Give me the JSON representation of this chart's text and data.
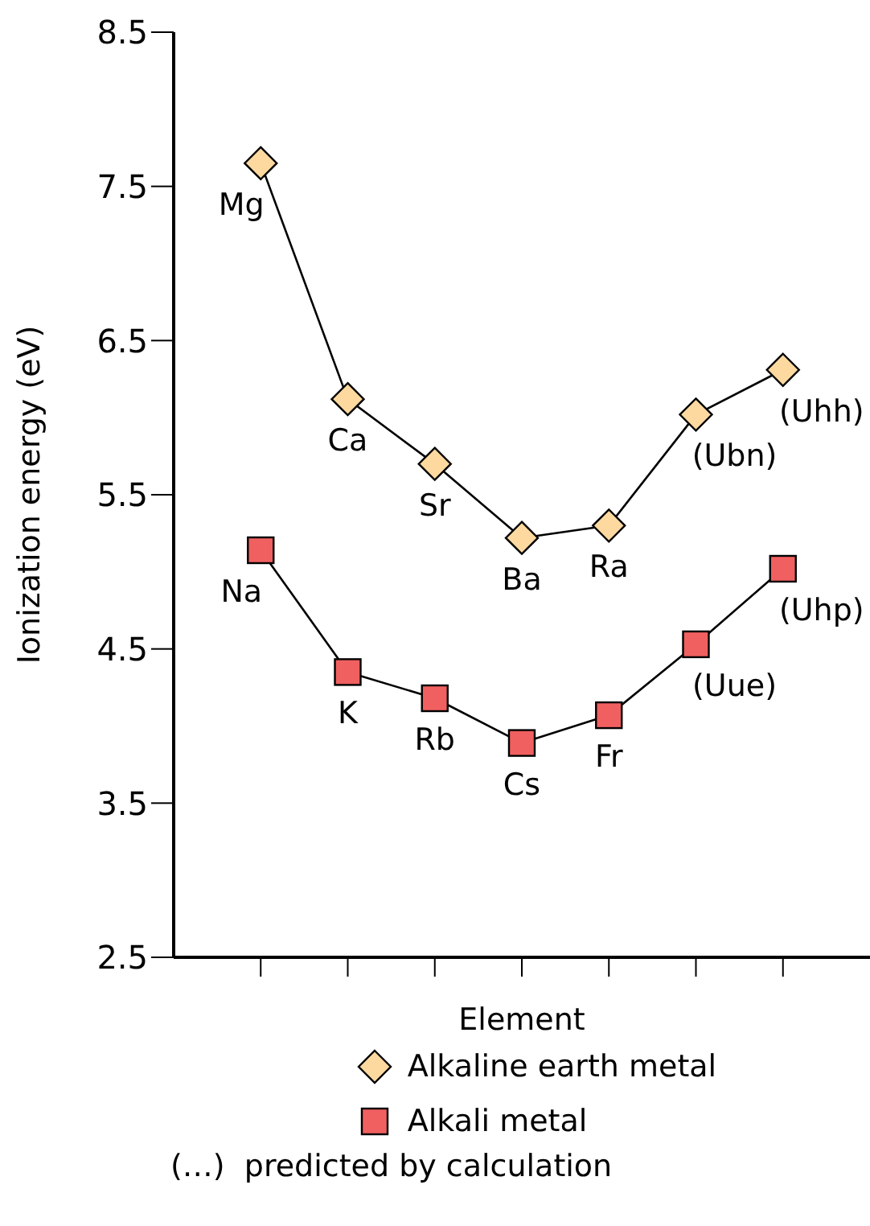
{
  "chart_data": {
    "type": "line",
    "xlabel": "Element",
    "ylabel": "Ionization energy (eV)",
    "categories": [
      null,
      null,
      null,
      null,
      null,
      null,
      null
    ],
    "ylim": [
      2.5,
      8.5
    ],
    "yticks": [
      2.5,
      3.5,
      4.5,
      5.5,
      6.5,
      7.5,
      8.5
    ],
    "grid": false,
    "legend": "bottom",
    "line_style": "solid",
    "annotations": [
      "(…)  predicted by calculation"
    ],
    "series": [
      {
        "name": "Alkaline earth metal",
        "color": "#fdd9a0",
        "marker": "diamond",
        "values": [
          7.65,
          6.12,
          5.7,
          5.22,
          5.3,
          6.02,
          6.31
        ],
        "value_labels": [
          "Mg",
          "Ca",
          "Sr",
          "Ba",
          "Ra",
          "(Ubn)",
          "(Uhh)"
        ]
      },
      {
        "name": "Alkali metal",
        "color": "#f06060",
        "marker": "square",
        "values": [
          5.14,
          4.35,
          4.18,
          3.89,
          4.07,
          4.53,
          5.02
        ],
        "value_labels": [
          "Na",
          "K",
          "Rb",
          "Cs",
          "Fr",
          "(Uue)",
          "(Uhp)"
        ]
      }
    ]
  }
}
